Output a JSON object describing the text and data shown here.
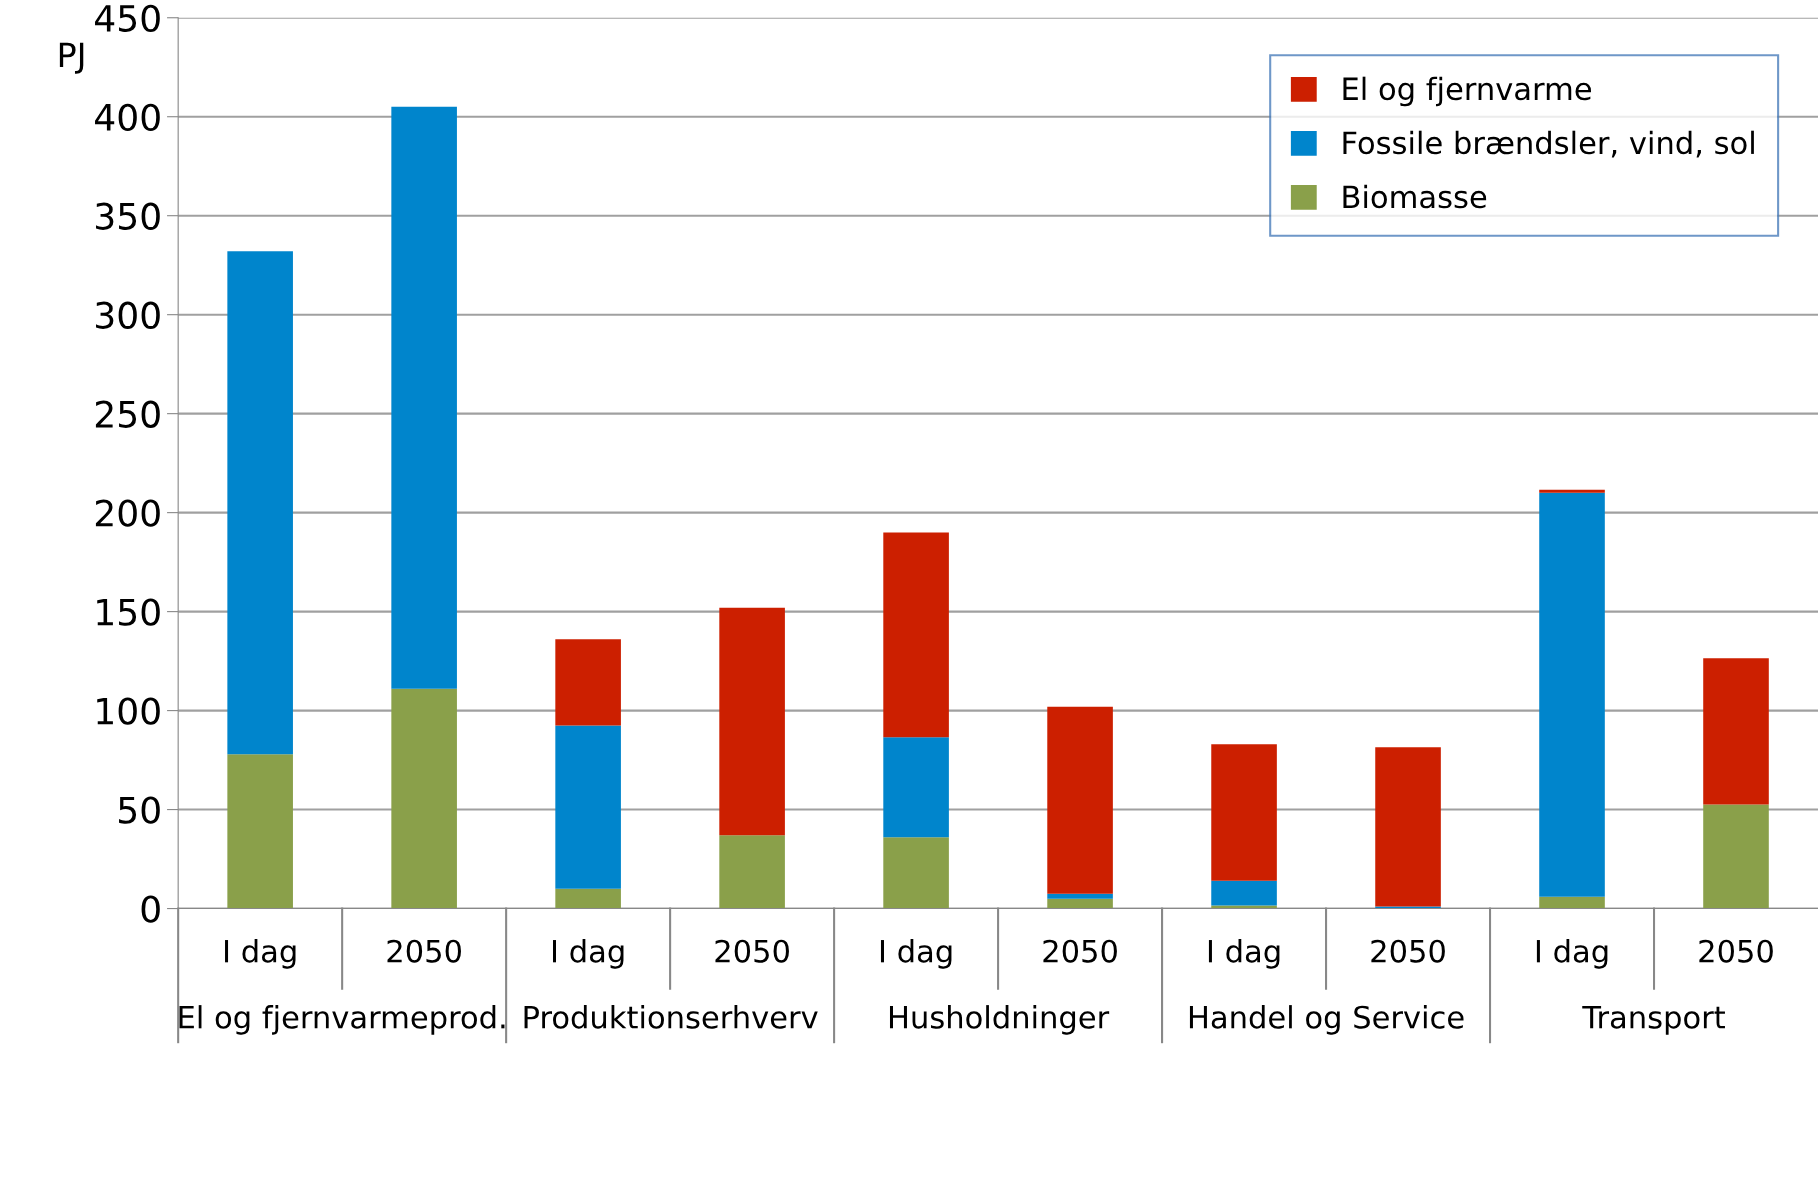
{
  "chart_data": {
    "type": "bar",
    "stacked": true,
    "ylabel": "PJ",
    "categories": [
      "I dag",
      "2050",
      "I dag",
      "2050",
      "I dag",
      "2050",
      "I dag",
      "2050",
      "I dag",
      "2050"
    ],
    "annotations": [
      "El og fjernvarmeprod.",
      "Produktionserhverv",
      "Husholdninger",
      "Handel og Service",
      "Transport"
    ],
    "series": [
      {
        "name": "Biomasse",
        "color": "#8aa04a",
        "values": [
          78,
          111,
          10,
          37,
          36,
          5,
          1.5,
          0,
          6,
          52.5
        ]
      },
      {
        "name": "Fossile brændsler, vind, sol",
        "color": "#0085cc",
        "values": [
          254,
          294,
          82.5,
          0,
          50.5,
          2.5,
          12.5,
          1,
          204,
          0
        ]
      },
      {
        "name": "El og fjernvarme",
        "color": "#cc1f00",
        "values": [
          0,
          0,
          43.5,
          115,
          103.5,
          94.5,
          69,
          80.5,
          1.5,
          74
        ]
      }
    ],
    "ylim": [
      0,
      450
    ],
    "yticks": [
      0,
      50,
      100,
      150,
      200,
      250,
      300,
      350,
      400,
      450
    ],
    "grid": "y",
    "legend": "top right"
  }
}
